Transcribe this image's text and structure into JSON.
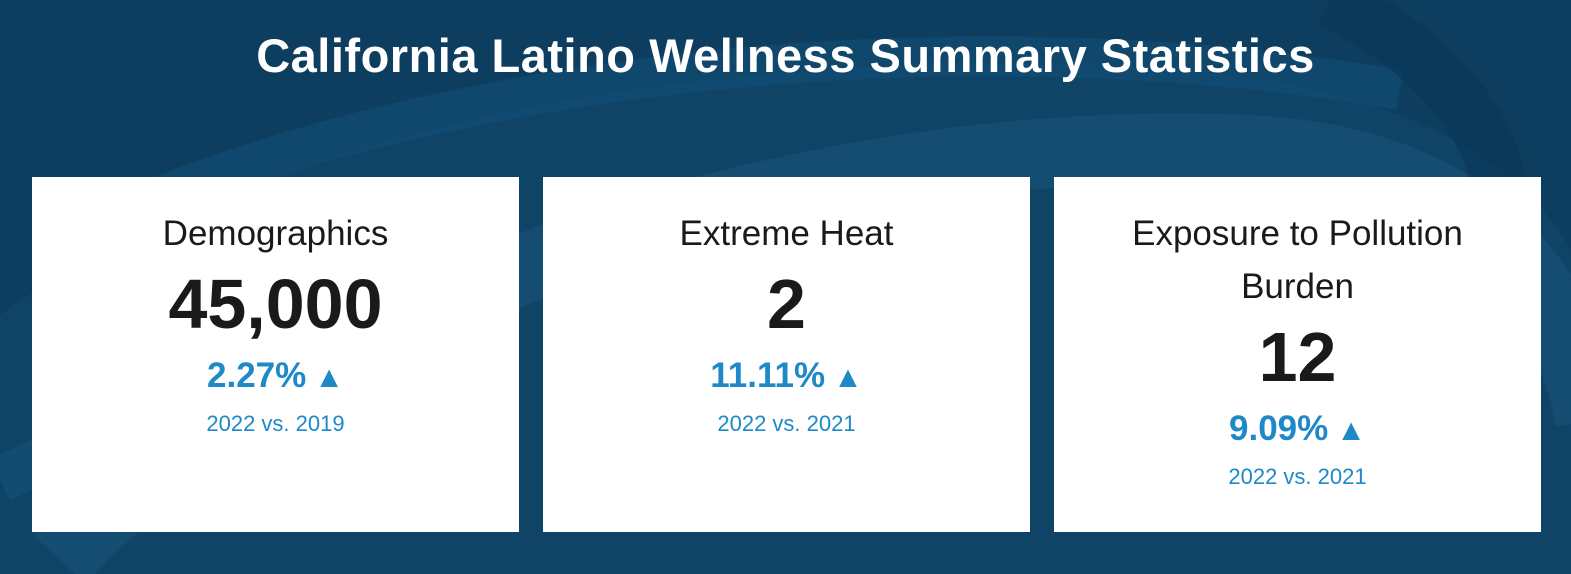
{
  "header": {
    "title": "California Latino Wellness Summary Statistics"
  },
  "cards": [
    {
      "heading": "Demographics",
      "value": "45,000",
      "change": "2.27%",
      "trend_icon": "▲",
      "period": "2022 vs. 2019"
    },
    {
      "heading": "Extreme Heat",
      "value": "2",
      "change": "11.11%",
      "trend_icon": "▲",
      "period": "2022 vs. 2021"
    },
    {
      "heading": "Exposure to Pollution Burden",
      "value": "12",
      "change": "9.09%",
      "trend_icon": "▲",
      "period": "2022 vs. 2021"
    }
  ],
  "colors": {
    "background": "#0f4467",
    "card": "#ffffff",
    "accent": "#1e88c8",
    "text": "#1a1a1a"
  },
  "icons": {
    "trend": "triangle-up-icon"
  }
}
